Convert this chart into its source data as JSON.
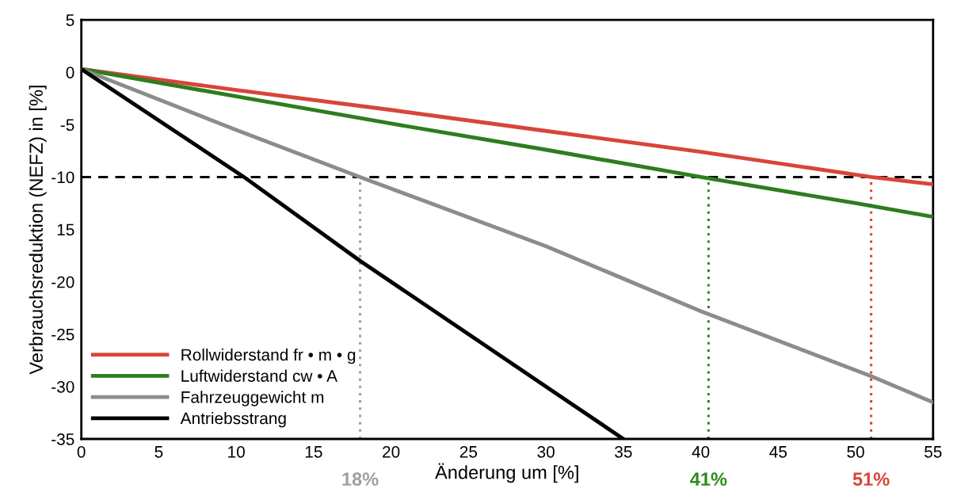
{
  "chart_data": {
    "type": "line",
    "xlabel": "Änderung um [%]",
    "ylabel": "Verbrauchsreduktion (NEFZ) in [%]",
    "xlim": [
      0,
      55
    ],
    "xticks": [
      0,
      5,
      10,
      15,
      20,
      25,
      30,
      35,
      40,
      45,
      50,
      55
    ],
    "ylim": [
      -35,
      5
    ],
    "yticks": [
      5,
      0,
      -5,
      -10,
      {
        "value": -15,
        "label": "15"
      },
      -20,
      -25,
      -30,
      -35
    ],
    "series": [
      {
        "name": "Rollwiderstand fr • m • g",
        "color": "#d8453a",
        "x": [
          0,
          10,
          20,
          30,
          40,
          51,
          55
        ],
        "values": [
          0.3,
          -1.7,
          -3.6,
          -5.6,
          -7.6,
          -10,
          -10.7
        ]
      },
      {
        "name": "Luftwiderstand cw • A",
        "color": "#2e7d1e",
        "x": [
          0,
          10,
          20,
          30,
          40,
          50,
          55
        ],
        "values": [
          0.3,
          -2.3,
          -4.9,
          -7.4,
          -10,
          -12.5,
          -13.8
        ]
      },
      {
        "name": "Fahrzeuggewicht m",
        "color": "#8c8c8c",
        "x": [
          0,
          10,
          18,
          30,
          40,
          51,
          55
        ],
        "values": [
          0.3,
          -5.5,
          -10,
          -16.6,
          -22.8,
          -29,
          -31.5
        ]
      },
      {
        "name": "Antriebsstrang",
        "color": "#000000",
        "x": [
          0,
          10.5,
          18,
          25,
          35
        ],
        "values": [
          0.3,
          -10,
          -18,
          -25,
          -35
        ]
      }
    ],
    "ref_lines": [
      {
        "axis": "y",
        "value": -10,
        "line_style": "dashed",
        "color": "#000000"
      },
      {
        "axis": "x",
        "value": 18,
        "label": "18%",
        "line_style": "dotted",
        "color": "#a0a0a0"
      },
      {
        "axis": "x",
        "value": 40.5,
        "label": "41%",
        "line_style": "dotted",
        "color": "#2e8b1e"
      },
      {
        "axis": "x",
        "value": 51,
        "label": "51%",
        "line_style": "dotted",
        "color": "#d8453a"
      }
    ],
    "legend": "bottom left",
    "grid": false,
    "marker": "none",
    "line_style": "solid"
  }
}
